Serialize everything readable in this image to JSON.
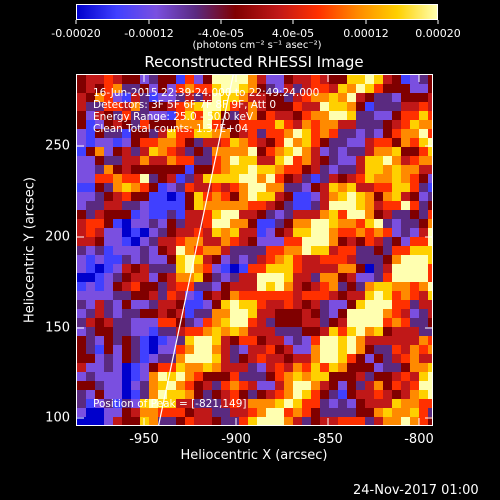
{
  "colorbar": {
    "ticks": [
      "-0.00020",
      "-0.00012",
      "-4.0e-05",
      "4.0e-05",
      "0.00012",
      "0.00020"
    ],
    "units_label": "(photons cm⁻² s⁻¹ asec⁻²)",
    "range": [
      -0.0002,
      0.0002
    ]
  },
  "title": "Reconstructed RHESSI Image",
  "info": {
    "time_range": "16-Jun-2015 22:39:24.000 to 22:49:24.000",
    "detectors": "Detectors: 3F 5F 6F 7F 8F 9F, Att 0",
    "energy_range": "Energy Range: 25.0 - 50.0 keV",
    "clean_counts": "Clean     Total counts: 1.37E+04",
    "peak": "Position of Peak = [-821,149]"
  },
  "axes": {
    "xlabel": "Heliocentric X (arcsec)",
    "ylabel": "Heliocentric Y (arcsec)",
    "x_ticks": [
      "-950",
      "-900",
      "-850",
      "-800"
    ],
    "y_ticks": [
      "250",
      "200",
      "150",
      "100"
    ],
    "x_range": [
      -987,
      -792
    ],
    "y_range": [
      98,
      290
    ]
  },
  "footer_date": "24-Nov-2017 01:00",
  "colors": {
    "background": "#000000",
    "text": "#ffffff",
    "limb_line": "#ffffff"
  },
  "colormap": [
    "#0000cc",
    "#4040ff",
    "#7a4fe0",
    "#5a2a80",
    "#800000",
    "#c01818",
    "#ff3000",
    "#ff8a00",
    "#ffd000",
    "#ffffb0"
  ]
}
